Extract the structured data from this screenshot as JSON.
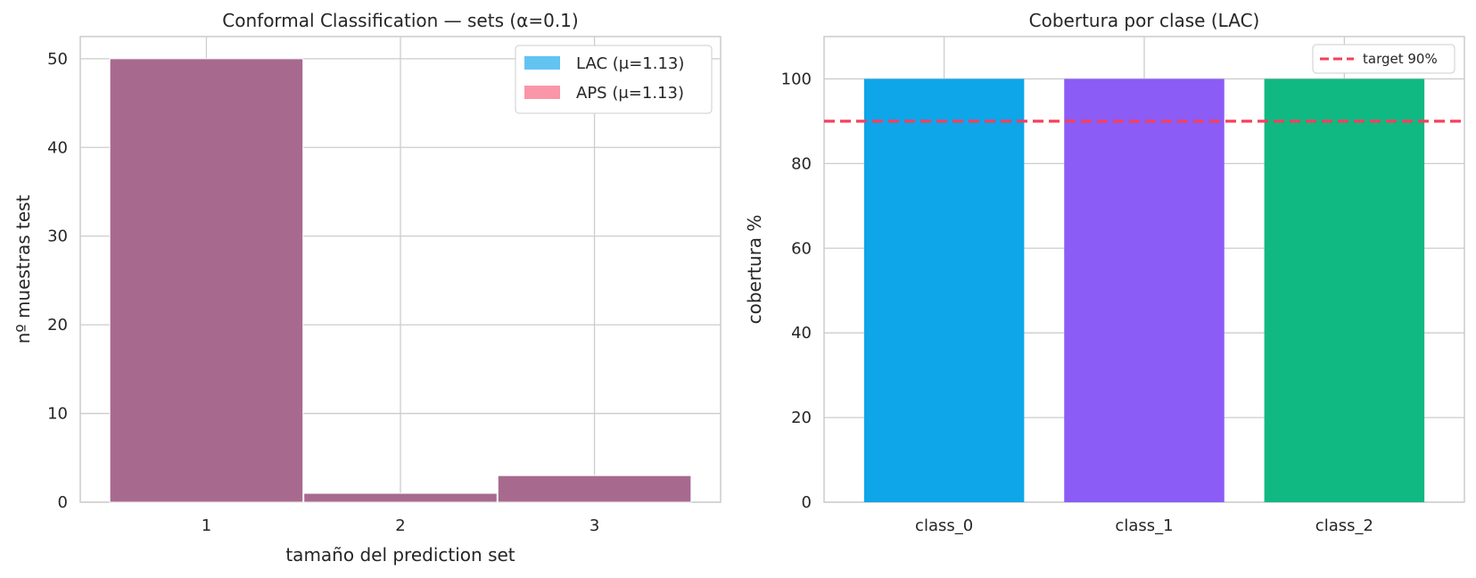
{
  "chart_data": [
    {
      "type": "bar",
      "title": "Conformal Classification — sets (α=0.1)",
      "xlabel": "tamaño del prediction set",
      "ylabel": "nº muestras test",
      "categories": [
        "1",
        "2",
        "3"
      ],
      "ylim": [
        0,
        52.5
      ],
      "yticks": [
        0,
        10,
        20,
        30,
        40,
        50
      ],
      "grid": true,
      "legend_position": "top-right",
      "overlay": true,
      "series": [
        {
          "name": "LAC (μ=1.13)",
          "values": [
            50,
            1,
            3
          ],
          "color": "#0ea5e9"
        },
        {
          "name": "APS (μ=1.13)",
          "values": [
            50,
            1,
            3
          ],
          "color": "#f43f5e"
        }
      ],
      "overlap_color": "#a8698f"
    },
    {
      "type": "bar",
      "title": "Cobertura por clase (LAC)",
      "xlabel": "",
      "ylabel": "cobertura %",
      "categories": [
        "class_0",
        "class_1",
        "class_2"
      ],
      "values": [
        100,
        100,
        100
      ],
      "colors": [
        "#0ea5e9",
        "#8b5cf6",
        "#10b981"
      ],
      "ylim": [
        0,
        110
      ],
      "yticks": [
        0,
        20,
        40,
        60,
        80,
        100
      ],
      "grid": true,
      "legend_position": "top-right",
      "reference_line": {
        "label": "target 90%",
        "value": 90,
        "color": "#f43f5e"
      }
    }
  ]
}
